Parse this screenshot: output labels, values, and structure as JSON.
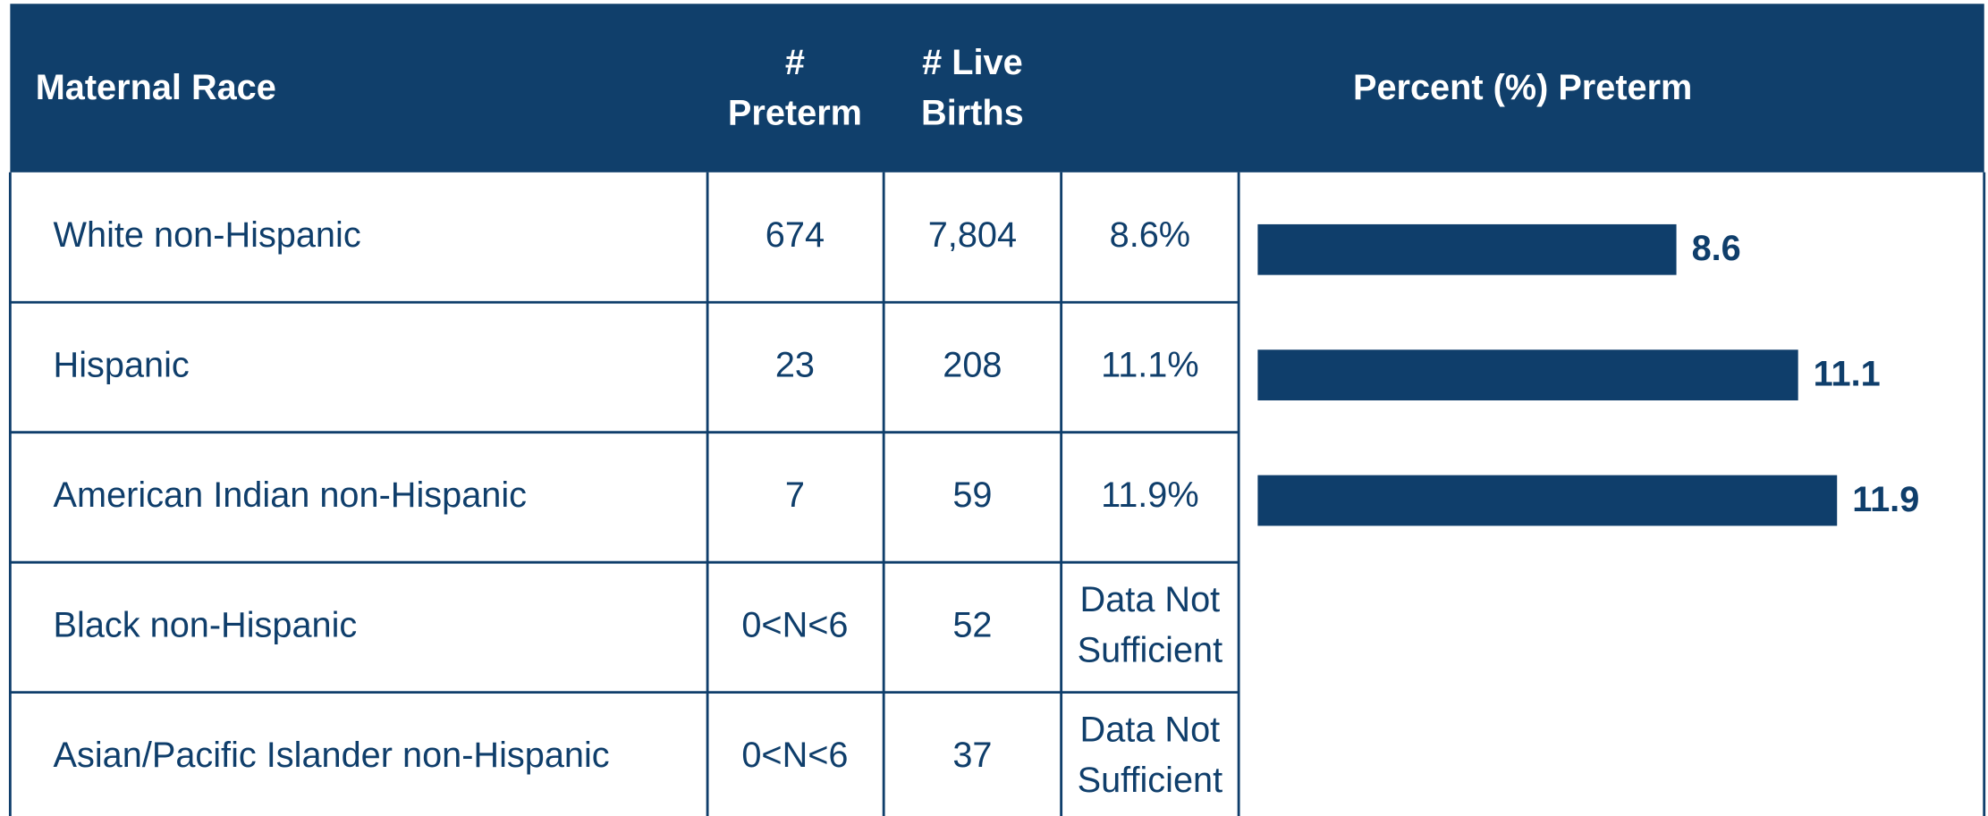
{
  "table": {
    "header": [
      "Maternal Race",
      [
        "#",
        "Preterm"
      ],
      [
        "# Live",
        "Births"
      ],
      "Percent (%) Preterm"
    ],
    "rows": [
      [
        "White non-Hispanic",
        "674",
        "7,804",
        "8.6%"
      ],
      [
        "Hispanic",
        "23",
        "208",
        "11.1%"
      ],
      [
        "American Indian non-Hispanic",
        "7",
        "59",
        "11.9%"
      ],
      [
        "Black non-Hispanic",
        "0<N<6",
        "52",
        [
          "Data Not",
          "Sufficient"
        ]
      ],
      [
        "Asian/Pacific Islander non-Hispanic",
        "0<N<6",
        "37",
        [
          "Data Not",
          "Sufficient"
        ]
      ]
    ]
  },
  "chart_data": {
    "type": "bar",
    "orientation": "horizontal",
    "values": [
      8.6,
      11.1,
      11.9
    ],
    "xlim": [
      0,
      15
    ],
    "color": "#0f3e6b"
  }
}
